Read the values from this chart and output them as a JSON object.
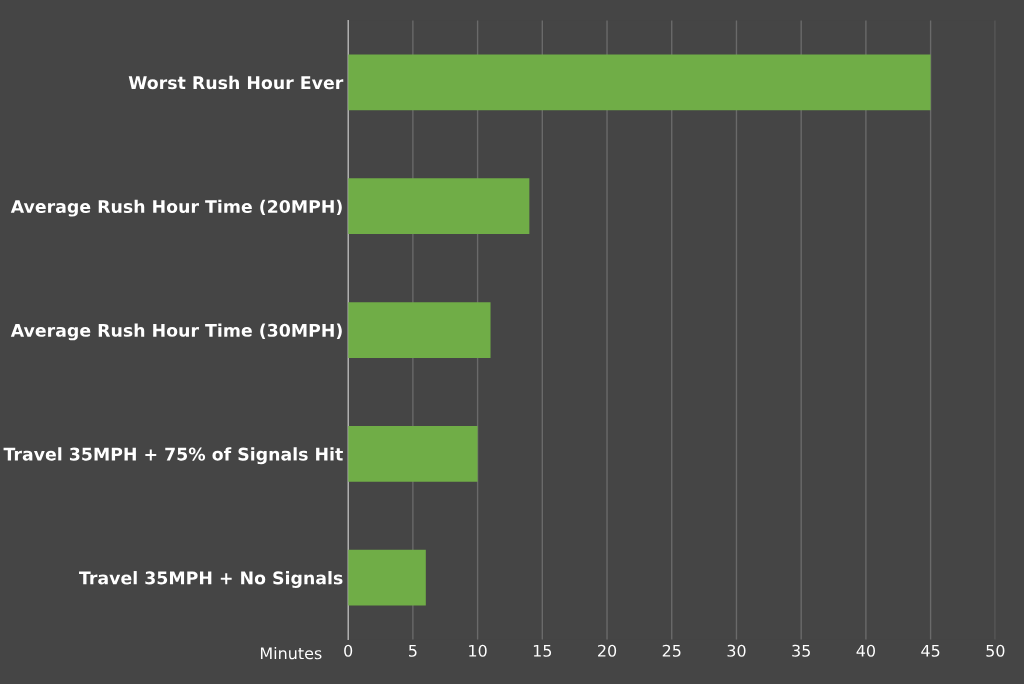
{
  "chart_data": {
    "type": "bar",
    "orientation": "horizontal",
    "categories": [
      "Worst Rush Hour Ever",
      "Average Rush Hour Time (20MPH)",
      "Average Rush Hour Time (30MPH)",
      "Travel 35MPH + 75% of Signals Hit",
      "Travel 35MPH + No Signals"
    ],
    "values": [
      45,
      14,
      11,
      10,
      6
    ],
    "color": "#70ad47",
    "xlabel": "Minutes",
    "xlim": [
      0,
      50
    ],
    "xticks": [
      0,
      5,
      10,
      15,
      20,
      25,
      30,
      35,
      40,
      45,
      50
    ],
    "grid": "x"
  }
}
